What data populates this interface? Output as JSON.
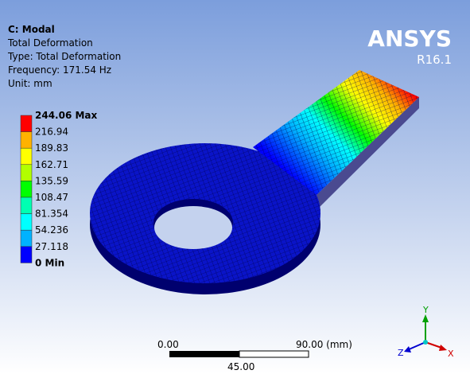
{
  "header": {
    "title": "C: Modal",
    "lines": [
      "Total Deformation",
      "Type: Total Deformation",
      "Frequency: 171.54 Hz",
      "Unit: mm"
    ]
  },
  "legend": {
    "labels": [
      "244.06 Max",
      "216.94",
      "189.83",
      "162.71",
      "135.59",
      "108.47",
      "81.354",
      "54.236",
      "27.118",
      "0 Min"
    ],
    "colors": [
      "#ff0000",
      "#ffb200",
      "#ffff00",
      "#b2ff00",
      "#00ff00",
      "#00ffb2",
      "#00ffff",
      "#00b2ff",
      "#0000ff"
    ]
  },
  "logo": {
    "name": "ANSYS",
    "version": "R16.1"
  },
  "scale_bar": {
    "start": "0.00",
    "end": "90.00 (mm)",
    "mid": "45.00"
  },
  "triad": {
    "x": "X",
    "y": "Y",
    "z": "Z"
  }
}
